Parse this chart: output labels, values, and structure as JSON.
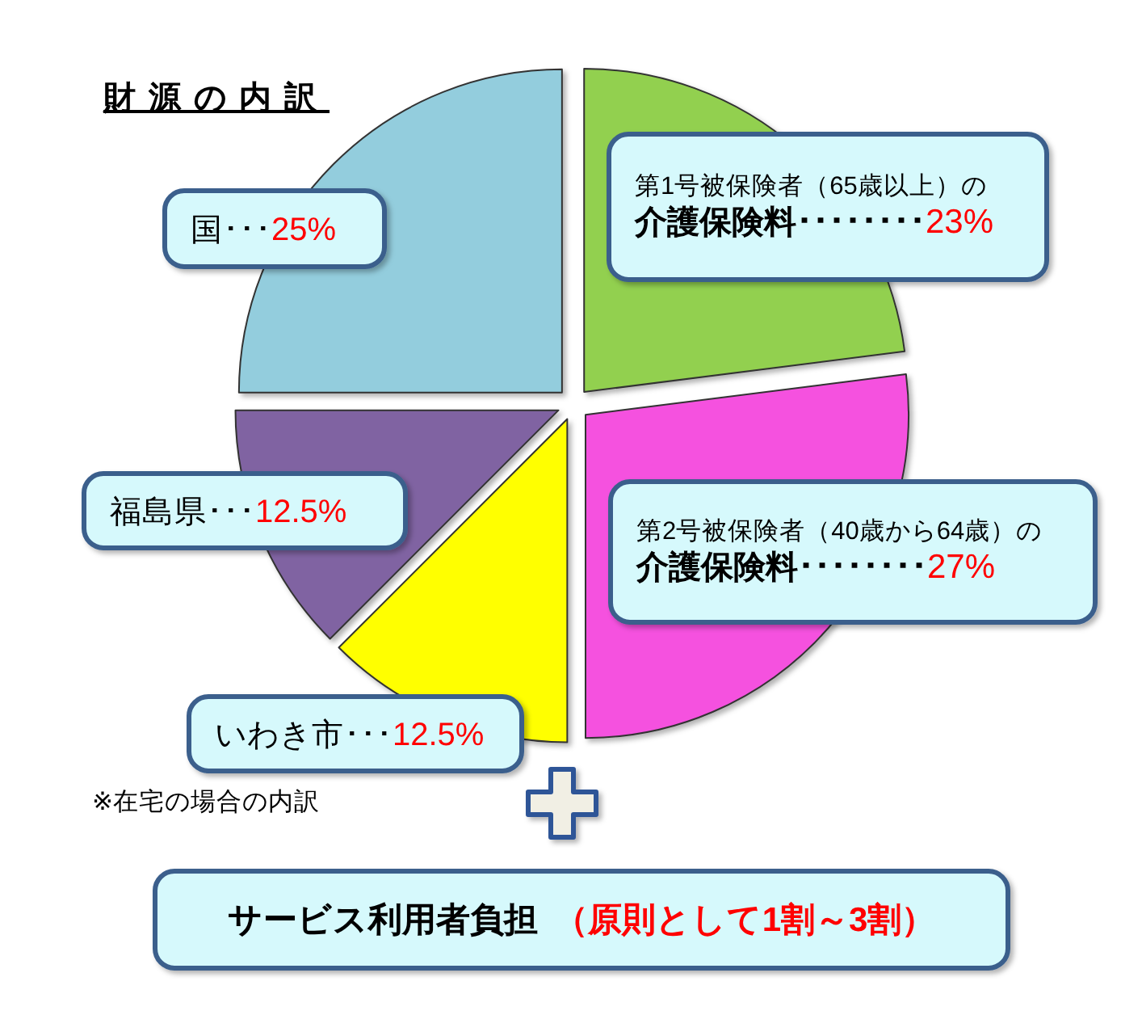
{
  "chart_data": {
    "type": "pie",
    "title": "財源の内訳",
    "categories": [
      "第1号被保険者（65歳以上）の介護保険料････････",
      "第2号被保険者（40歳から64歳）の介護保険料････････",
      "いわき市･･･",
      "福島県･･･",
      "国･･･"
    ],
    "values": [
      23,
      27,
      12.5,
      12.5,
      25
    ],
    "value_labels": [
      "23%",
      "27%",
      "12.5%",
      "12.5%",
      "25%"
    ],
    "colors": [
      "#92d050",
      "#f551df",
      "#ffff00",
      "#8064a2",
      "#93cddd"
    ],
    "annotations": [
      "※在宅の場合の内訳",
      "サービス利用者負担",
      "（原則として1割～3割）"
    ]
  }
}
